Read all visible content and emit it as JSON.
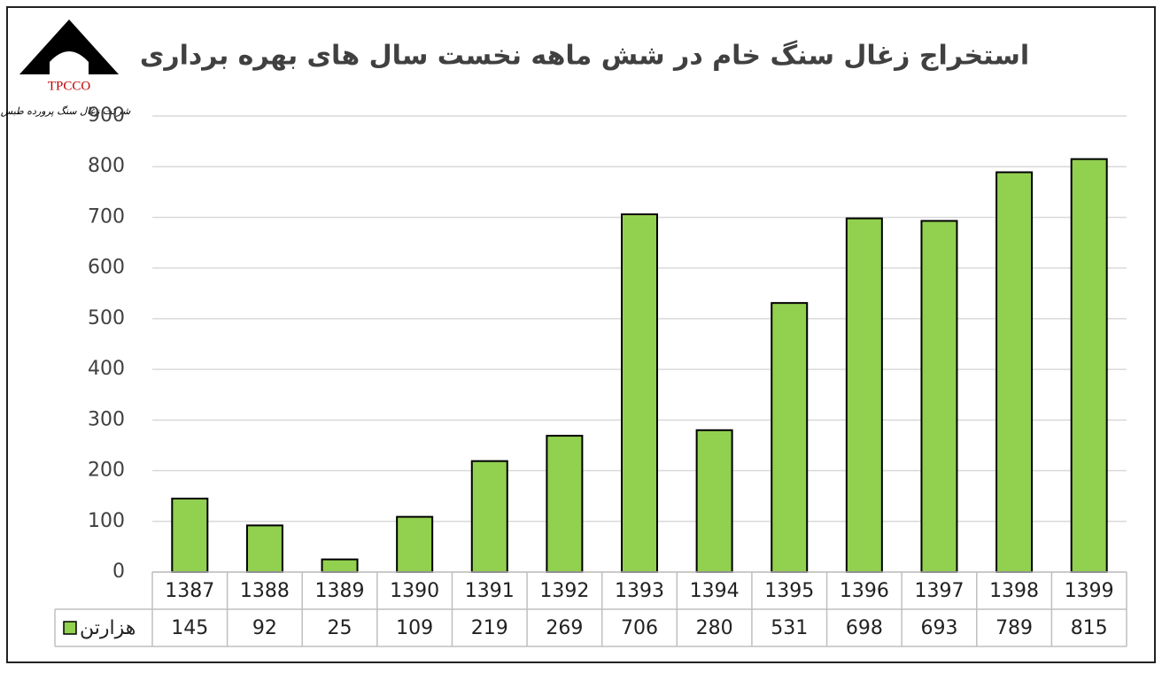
{
  "logo": {
    "abbr": "TPCCO",
    "name": "شرکت زغال سنگ پرورده طبس"
  },
  "chart_data": {
    "type": "bar",
    "title": "استخراج زغال سنگ خام در شش ماهه نخست سال های بهره برداری",
    "categories": [
      "1387",
      "1388",
      "1389",
      "1390",
      "1391",
      "1392",
      "1393",
      "1394",
      "1395",
      "1396",
      "1397",
      "1398",
      "1399"
    ],
    "series": [
      {
        "name": "هزارتن",
        "color": "#92d050",
        "values": [
          145,
          92,
          25,
          109,
          219,
          269,
          706,
          280,
          531,
          698,
          693,
          789,
          815
        ]
      }
    ],
    "ylim": [
      0,
      900
    ],
    "yticks": [
      0,
      100,
      200,
      300,
      400,
      500,
      600,
      700,
      800,
      900
    ],
    "grid": true,
    "data_table": true
  }
}
